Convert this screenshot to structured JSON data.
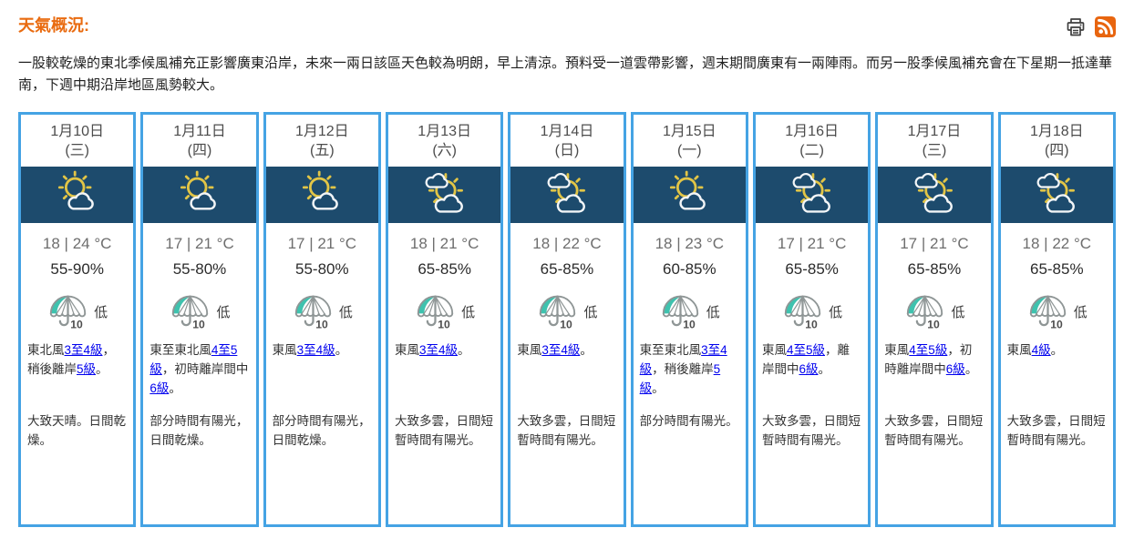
{
  "header": {
    "title": "天氣概況:",
    "summary": "一股較乾燥的東北季候風補充正影響廣東沿岸，未來一兩日該區天色較為明朗，早上清涼。預料受一道雲帶影響，週末期間廣東有一兩陣雨。而另一股季候風補充會在下星期一抵達華南，下週中期沿岸地區風勢較大。",
    "icons": [
      "printer-icon",
      "rss-icon"
    ]
  },
  "colors": {
    "title_orange": "#e96b10",
    "card_border_blue": "#45a3e4",
    "icon_band_navy": "#1d4b6d",
    "sun_yellow": "#e2c546",
    "psr_teal": "#3fc2ae",
    "link_blue": "#0000ee",
    "rss_orange": "#e8650f"
  },
  "forecast": {
    "days": [
      {
        "date": "1月10日",
        "weekday": "(三)",
        "icon": "mostly-sunny",
        "temp": "18 | 24 °C",
        "humidity": "55-90%",
        "psr_value": "10",
        "psr_label": "低",
        "wind_parts": [
          {
            "text": "東北風",
            "link": false
          },
          {
            "text": "3至4級",
            "link": true
          },
          {
            "text": "，稍後離岸",
            "link": false
          },
          {
            "text": "5級",
            "link": true
          },
          {
            "text": "。",
            "link": false
          }
        ],
        "description": "大致天晴。日間乾燥。"
      },
      {
        "date": "1月11日",
        "weekday": "(四)",
        "icon": "mostly-sunny",
        "temp": "17 | 21 °C",
        "humidity": "55-80%",
        "psr_value": "10",
        "psr_label": "低",
        "wind_parts": [
          {
            "text": "東至東北風",
            "link": false
          },
          {
            "text": "4至5級",
            "link": true
          },
          {
            "text": "，初時離岸間中",
            "link": false
          },
          {
            "text": "6級",
            "link": true
          },
          {
            "text": "。",
            "link": false
          }
        ],
        "description": "部分時間有陽光，日間乾燥。"
      },
      {
        "date": "1月12日",
        "weekday": "(五)",
        "icon": "mostly-sunny",
        "temp": "17 | 21 °C",
        "humidity": "55-80%",
        "psr_value": "10",
        "psr_label": "低",
        "wind_parts": [
          {
            "text": "東風",
            "link": false
          },
          {
            "text": "3至4級",
            "link": true
          },
          {
            "text": "。",
            "link": false
          }
        ],
        "description": "部分時間有陽光，日間乾燥。"
      },
      {
        "date": "1月13日",
        "weekday": "(六)",
        "icon": "sunny-intervals",
        "temp": "18 | 21 °C",
        "humidity": "65-85%",
        "psr_value": "10",
        "psr_label": "低",
        "wind_parts": [
          {
            "text": "東風",
            "link": false
          },
          {
            "text": "3至4級",
            "link": true
          },
          {
            "text": "。",
            "link": false
          }
        ],
        "description": "大致多雲，日間短暫時間有陽光。"
      },
      {
        "date": "1月14日",
        "weekday": "(日)",
        "icon": "sunny-intervals",
        "temp": "18 | 22 °C",
        "humidity": "65-85%",
        "psr_value": "10",
        "psr_label": "低",
        "wind_parts": [
          {
            "text": "東風",
            "link": false
          },
          {
            "text": "3至4級",
            "link": true
          },
          {
            "text": "。",
            "link": false
          }
        ],
        "description": "大致多雲，日間短暫時間有陽光。"
      },
      {
        "date": "1月15日",
        "weekday": "(一)",
        "icon": "mostly-sunny",
        "temp": "18 | 23 °C",
        "humidity": "60-85%",
        "psr_value": "10",
        "psr_label": "低",
        "wind_parts": [
          {
            "text": "東至東北風",
            "link": false
          },
          {
            "text": "3至4級",
            "link": true
          },
          {
            "text": "，稍後離岸",
            "link": false
          },
          {
            "text": "5級",
            "link": true
          },
          {
            "text": "。",
            "link": false
          }
        ],
        "description": "部分時間有陽光。"
      },
      {
        "date": "1月16日",
        "weekday": "(二)",
        "icon": "sunny-intervals",
        "temp": "17 | 21 °C",
        "humidity": "65-85%",
        "psr_value": "10",
        "psr_label": "低",
        "wind_parts": [
          {
            "text": "東風",
            "link": false
          },
          {
            "text": "4至5級",
            "link": true
          },
          {
            "text": "，離岸間中",
            "link": false
          },
          {
            "text": "6級",
            "link": true
          },
          {
            "text": "。",
            "link": false
          }
        ],
        "description": "大致多雲，日間短暫時間有陽光。"
      },
      {
        "date": "1月17日",
        "weekday": "(三)",
        "icon": "sunny-intervals",
        "temp": "17 | 21 °C",
        "humidity": "65-85%",
        "psr_value": "10",
        "psr_label": "低",
        "wind_parts": [
          {
            "text": "東風",
            "link": false
          },
          {
            "text": "4至5級",
            "link": true
          },
          {
            "text": "，初時離岸間中",
            "link": false
          },
          {
            "text": "6級",
            "link": true
          },
          {
            "text": "。",
            "link": false
          }
        ],
        "description": "大致多雲，日間短暫時間有陽光。"
      },
      {
        "date": "1月18日",
        "weekday": "(四)",
        "icon": "sunny-intervals",
        "temp": "18 | 22 °C",
        "humidity": "65-85%",
        "psr_value": "10",
        "psr_label": "低",
        "wind_parts": [
          {
            "text": "東風",
            "link": false
          },
          {
            "text": "4級",
            "link": true
          },
          {
            "text": "。",
            "link": false
          }
        ],
        "description": "大致多雲，日間短暫時間有陽光。"
      }
    ]
  }
}
